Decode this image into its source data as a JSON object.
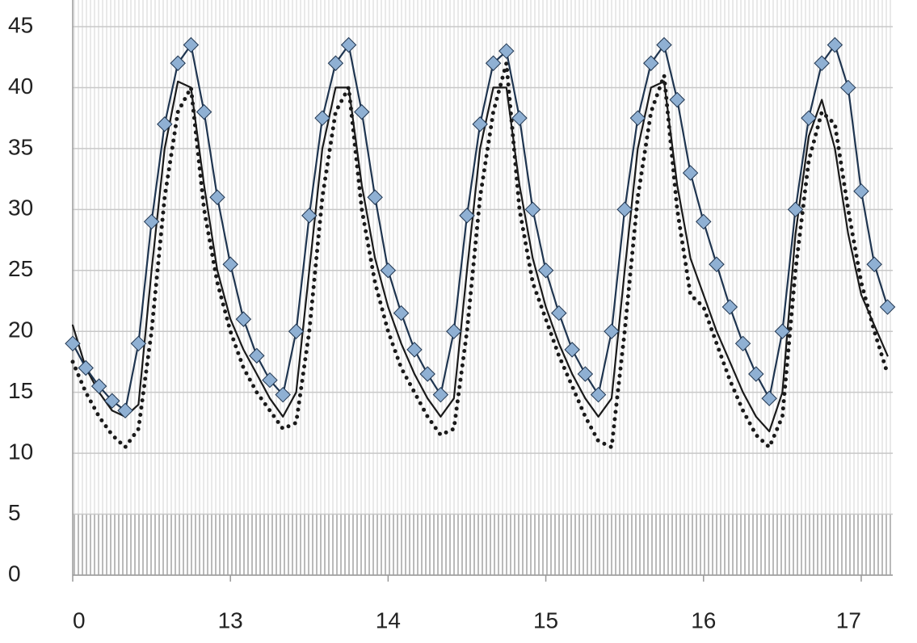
{
  "chart_data": {
    "type": "line",
    "x": [
      12,
      12.083,
      12.167,
      12.25,
      12.333,
      12.417,
      12.5,
      12.583,
      12.667,
      12.75,
      12.833,
      12.917,
      13,
      13.083,
      13.167,
      13.25,
      13.333,
      13.417,
      13.5,
      13.583,
      13.667,
      13.75,
      13.833,
      13.917,
      14,
      14.083,
      14.167,
      14.25,
      14.333,
      14.417,
      14.5,
      14.583,
      14.667,
      14.75,
      14.833,
      14.917,
      15,
      15.083,
      15.167,
      15.25,
      15.333,
      15.417,
      15.5,
      15.583,
      15.667,
      15.75,
      15.833,
      15.917,
      16,
      16.083,
      16.167,
      16.25,
      16.333,
      16.417,
      16.5,
      16.583,
      16.667,
      16.75,
      16.833,
      16.917,
      17,
      17.083,
      17.167
    ],
    "series": [
      {
        "color": "#1f3550",
        "marker": "diamond",
        "marker_color": "#8fb0d3",
        "dash": "solid",
        "values": [
          19,
          17,
          15.5,
          14.3,
          13.5,
          19,
          29,
          37,
          42,
          43.5,
          38,
          31,
          25.5,
          21,
          18,
          16,
          14.8,
          20,
          29.5,
          37.5,
          42,
          43.5,
          38,
          31,
          25,
          21.5,
          18.5,
          16.5,
          14.8,
          20,
          29.5,
          37,
          42,
          43,
          37.5,
          30,
          25,
          21.5,
          18.5,
          16.5,
          14.8,
          20,
          30,
          37.5,
          42,
          43.5,
          39,
          33,
          29,
          25.5,
          22,
          19,
          16.5,
          14.5,
          20,
          30,
          37.5,
          42,
          43.5,
          40,
          31.5,
          25.5,
          22
        ]
      },
      {
        "color": "#1a1a1a",
        "marker": "none",
        "dash": "solid",
        "values": [
          20.5,
          17,
          15,
          13.5,
          13,
          14,
          25,
          35,
          40.5,
          40,
          32,
          25,
          21,
          18.5,
          16.5,
          14.5,
          13,
          15,
          25,
          35,
          40,
          40,
          32,
          26,
          22,
          19,
          16.5,
          14.5,
          13,
          14.5,
          25,
          35,
          40,
          40,
          32,
          26,
          22,
          19,
          16.5,
          14.5,
          13,
          14.5,
          25,
          35,
          40,
          40.5,
          32,
          26,
          23,
          20,
          17.5,
          15,
          13,
          11.8,
          15,
          28,
          36,
          39,
          35,
          28,
          23,
          20.5,
          18
        ]
      },
      {
        "color": "#1a1a1a",
        "marker": "none",
        "dash": "dotted",
        "values": [
          17.5,
          15,
          13,
          11.5,
          10.5,
          12,
          20,
          31,
          38,
          40,
          30,
          24,
          20,
          17,
          15,
          13.5,
          12,
          12.5,
          20,
          31,
          38,
          40,
          30,
          24,
          20,
          17,
          15,
          13,
          11.5,
          12,
          20,
          31,
          38,
          42,
          30,
          24,
          21,
          18,
          15.5,
          13,
          11,
          10.5,
          20,
          31,
          38,
          41,
          30,
          23,
          22,
          19,
          16,
          13.5,
          11.5,
          10.5,
          13,
          25,
          34,
          38,
          37,
          30,
          24,
          20,
          16.5
        ]
      }
    ],
    "xlim": [
      12,
      17.2
    ],
    "xticks": [
      {
        "value": 12,
        "label": "0"
      },
      13,
      14,
      15,
      16,
      17
    ],
    "ylim": [
      0,
      45
    ],
    "yticks": [
      0,
      5,
      10,
      15,
      20,
      25,
      30,
      35,
      40,
      45
    ],
    "grid": true
  }
}
